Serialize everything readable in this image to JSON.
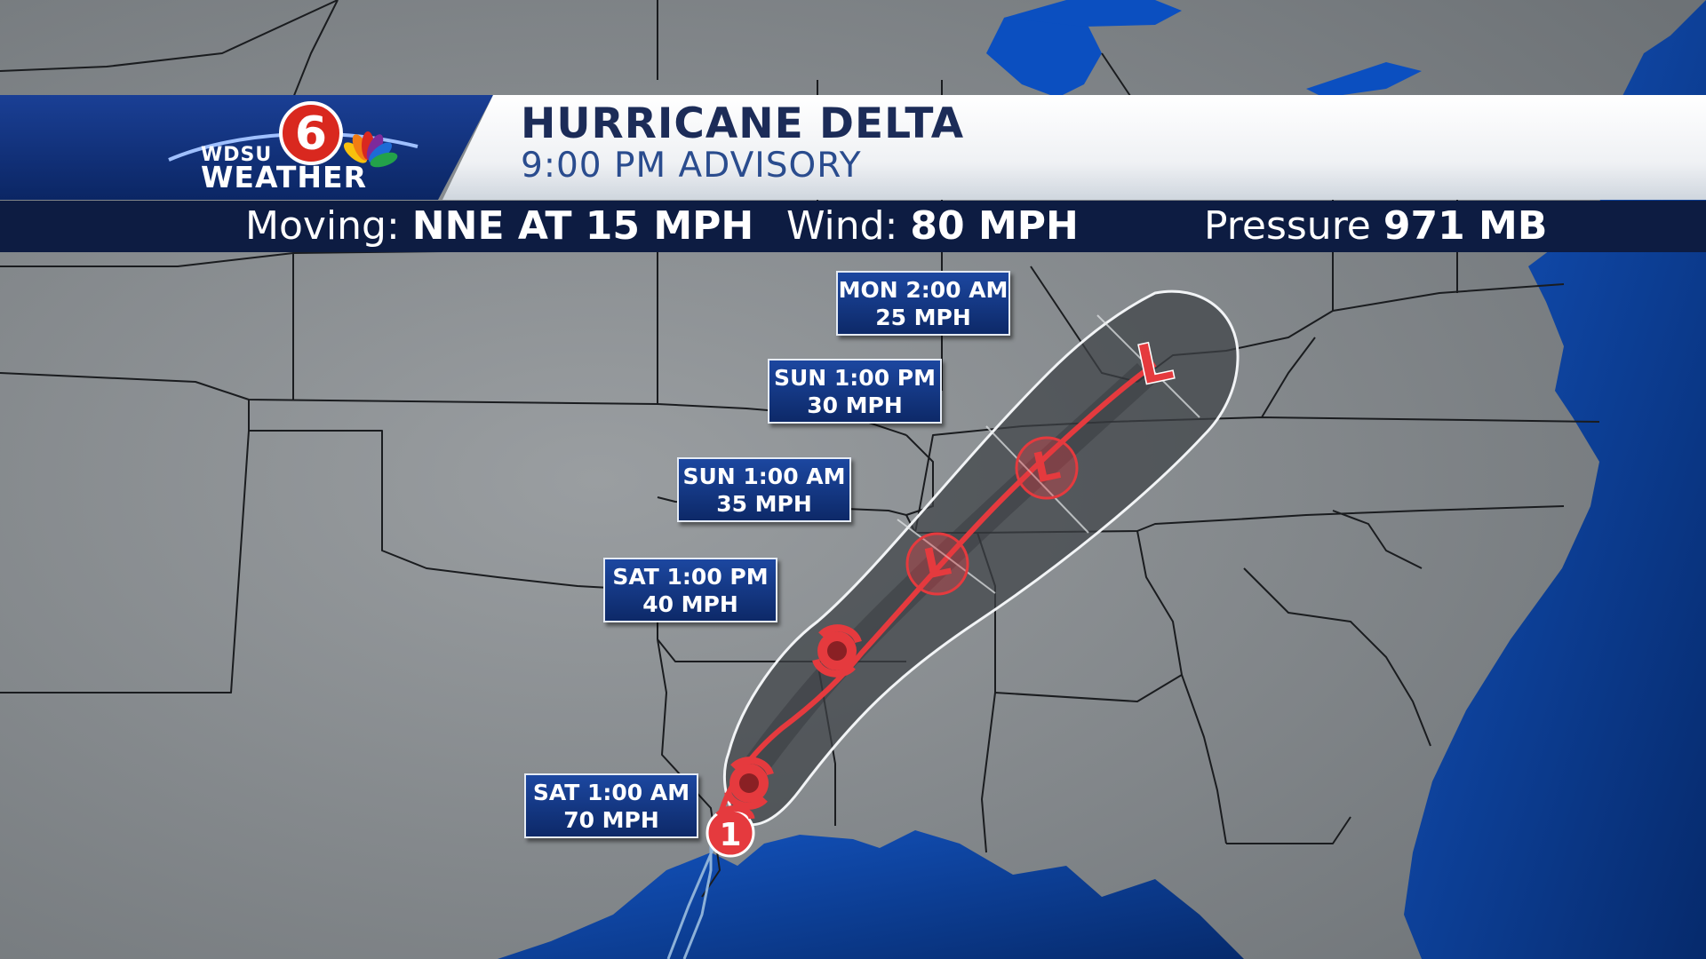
{
  "header": {
    "station_line1": "WDSU",
    "station_line2": "WEATHER",
    "channel_number": "6",
    "title": "HURRICANE DELTA",
    "advisory": "9:00 PM ADVISORY"
  },
  "stats": {
    "moving_label": "Moving:",
    "moving_value": "NNE AT 15 MPH",
    "wind_label": "Wind:",
    "wind_value": "80 MPH",
    "pressure_label": "Pressure",
    "pressure_value": "971 MB"
  },
  "current_position": {
    "category": "1"
  },
  "forecast_points": [
    {
      "time": "SAT 1:00 AM",
      "wind": "70 MPH",
      "symbol": "hurricane-icon"
    },
    {
      "time": "SAT 1:00 PM",
      "wind": "40 MPH",
      "symbol": "hurricane-icon"
    },
    {
      "time": "SUN 1:00 AM",
      "wind": "35 MPH",
      "symbol": "low-pressure-icon"
    },
    {
      "time": "SUN 1:00 PM",
      "wind": "30 MPH",
      "symbol": "low-pressure-icon"
    },
    {
      "time": "MON 2:00 AM",
      "wind": "25 MPH",
      "symbol": "low-pressure-icon"
    }
  ],
  "colors": {
    "land": "#8a8f93",
    "water": "#0a3f93",
    "track": "#e53a3e",
    "cone": "#3f4246",
    "banner_blue": "#0d2968",
    "info_bar": "#0d1c42"
  }
}
